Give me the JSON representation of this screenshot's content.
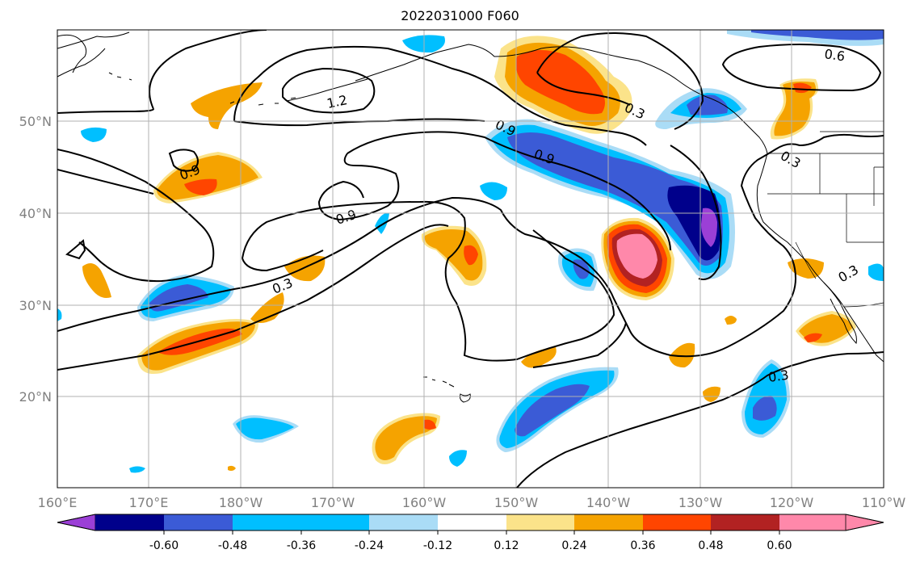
{
  "title": "2022031000 F060",
  "map": {
    "lon_ticks": [
      "160°E",
      "170°E",
      "180°W",
      "170°W",
      "160°W",
      "150°W",
      "140°W",
      "130°W",
      "120°W",
      "110°W"
    ],
    "lat_ticks": [
      "50°N",
      "40°N",
      "30°N",
      "20°N"
    ],
    "contour_labels": [
      "1.2",
      "0.9",
      "0.9",
      "0.9",
      "0.9",
      "0.6",
      "0.3",
      "0.3",
      "0.3",
      "0.3",
      "0.3"
    ]
  },
  "colorbar": {
    "labels": [
      "-0.60",
      "-0.48",
      "-0.36",
      "-0.24",
      "-0.12",
      "0.12",
      "0.24",
      "0.36",
      "0.48",
      "0.60"
    ],
    "colors": [
      "#9b3fd6",
      "#00008b",
      "#3b5bd6",
      "#00bfff",
      "#aadcf6",
      "#ffffff",
      "#fbe38a",
      "#f5a300",
      "#ff4500",
      "#b22222",
      "#ff88aa"
    ],
    "extend": "both"
  },
  "fill_colors": {
    "purple": "#9b3fd6",
    "navy": "#00008b",
    "blue": "#3b5bd6",
    "cyan": "#00bfff",
    "lightblue": "#aadcf6",
    "yellow": "#fbe38a",
    "orange": "#f5a300",
    "red": "#ff4500",
    "darkred": "#b22222",
    "pink": "#ff88aa"
  }
}
